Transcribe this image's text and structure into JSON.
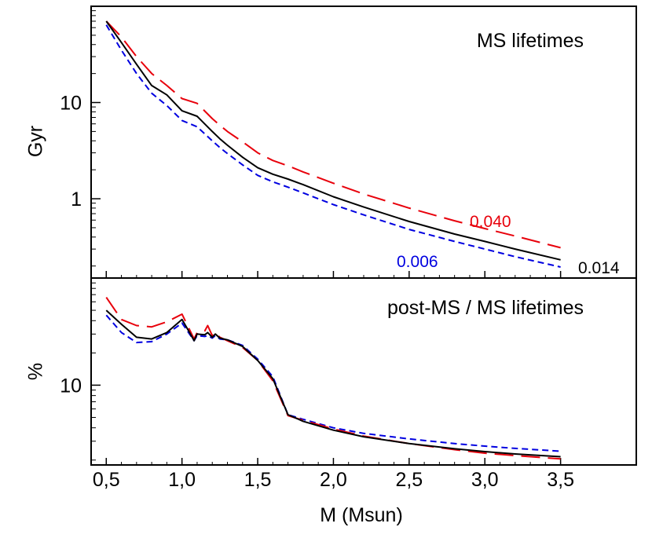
{
  "figure": {
    "xlabel": "M (Msun)"
  },
  "colors": {
    "z014": "#000000",
    "z040": "#e8000b",
    "z006": "#0000e0",
    "axes": "#000000"
  },
  "chart_data": [
    {
      "type": "line",
      "panel": "top",
      "title": "MS lifetimes",
      "ylabel": "Gyr",
      "yscale": "log",
      "xlim": [
        0.4,
        4.0
      ],
      "ylim": [
        0.15,
        100
      ],
      "xticks": [
        {
          "value": 0.5,
          "label": "0,5"
        },
        {
          "value": 1.0,
          "label": "1,0"
        },
        {
          "value": 1.5,
          "label": "1,5"
        },
        {
          "value": 2.0,
          "label": "2,0"
        },
        {
          "value": 2.5,
          "label": "2,5"
        },
        {
          "value": 3.0,
          "label": "3,0"
        },
        {
          "value": 3.5,
          "label": "3,5"
        }
      ],
      "yticks": [
        {
          "value": 1,
          "label": "1"
        },
        {
          "value": 10,
          "label": "10"
        }
      ],
      "series": [
        {
          "name": "0.014",
          "label": "0.014",
          "color_key": "z014",
          "dash": "solid",
          "x": [
            0.5,
            0.6,
            0.7,
            0.8,
            0.9,
            1.0,
            1.1,
            1.2,
            1.25,
            1.3,
            1.4,
            1.5,
            1.6,
            1.7,
            1.8,
            2.0,
            2.2,
            2.5,
            2.8,
            3.0,
            3.2,
            3.5
          ],
          "y": [
            70,
            42,
            25,
            15,
            12,
            8.2,
            7.2,
            5.0,
            4.2,
            3.6,
            2.7,
            2.1,
            1.8,
            1.6,
            1.4,
            1.05,
            0.82,
            0.58,
            0.43,
            0.36,
            0.3,
            0.232
          ]
        },
        {
          "name": "0.040",
          "label": "0.040",
          "color_key": "z040",
          "dash": "long",
          "x": [
            0.5,
            0.6,
            0.7,
            0.8,
            0.9,
            1.0,
            1.1,
            1.2,
            1.25,
            1.3,
            1.4,
            1.5,
            1.6,
            1.7,
            1.8,
            2.0,
            2.2,
            2.5,
            2.8,
            3.0,
            3.2,
            3.5
          ],
          "y": [
            70,
            48,
            30,
            20,
            15,
            11,
            9.8,
            6.8,
            5.8,
            5.0,
            3.9,
            3.0,
            2.5,
            2.2,
            1.9,
            1.45,
            1.12,
            0.8,
            0.59,
            0.49,
            0.41,
            0.31
          ]
        },
        {
          "name": "0.006",
          "label": "0.006",
          "color_key": "z006",
          "dash": "short",
          "x": [
            0.5,
            0.6,
            0.7,
            0.8,
            0.9,
            1.0,
            1.1,
            1.2,
            1.25,
            1.3,
            1.4,
            1.5,
            1.6,
            1.7,
            1.8,
            2.0,
            2.2,
            2.5,
            2.8,
            3.0,
            3.2,
            3.5
          ],
          "y": [
            64,
            35,
            20,
            12.5,
            9.3,
            6.5,
            5.6,
            4.0,
            3.4,
            2.95,
            2.25,
            1.75,
            1.5,
            1.32,
            1.15,
            0.87,
            0.68,
            0.48,
            0.36,
            0.3,
            0.25,
            0.195
          ]
        }
      ]
    },
    {
      "type": "line",
      "panel": "bottom",
      "title": "post-MS / MS lifetimes",
      "ylabel": "%",
      "yscale": "log",
      "xlim": [
        0.4,
        4.0
      ],
      "ylim": [
        1.8,
        100
      ],
      "xticks": [
        {
          "value": 0.5,
          "label": "0,5"
        },
        {
          "value": 1.0,
          "label": "1,0"
        },
        {
          "value": 1.5,
          "label": "1,5"
        },
        {
          "value": 2.0,
          "label": "2,0"
        },
        {
          "value": 2.5,
          "label": "2,5"
        },
        {
          "value": 3.0,
          "label": "3,0"
        },
        {
          "value": 3.5,
          "label": "3,5"
        }
      ],
      "yticks": [
        {
          "value": 10,
          "label": "10"
        }
      ],
      "series": [
        {
          "name": "0.014",
          "color_key": "z014",
          "dash": "solid",
          "x": [
            0.5,
            0.6,
            0.7,
            0.8,
            0.9,
            1.0,
            1.05,
            1.08,
            1.1,
            1.15,
            1.17,
            1.2,
            1.22,
            1.25,
            1.3,
            1.4,
            1.5,
            1.6,
            1.7,
            1.8,
            2.0,
            2.2,
            2.5,
            2.8,
            3.0,
            3.2,
            3.5
          ],
          "y": [
            50,
            37,
            28,
            27,
            31,
            41,
            31,
            26,
            30,
            29.5,
            31,
            28,
            30,
            27.5,
            26.5,
            23,
            17,
            11.5,
            5.3,
            4.6,
            3.8,
            3.3,
            2.85,
            2.55,
            2.4,
            2.28,
            2.15
          ]
        },
        {
          "name": "0.040",
          "color_key": "z040",
          "dash": "long",
          "x": [
            0.5,
            0.6,
            0.7,
            0.8,
            0.9,
            1.0,
            1.05,
            1.08,
            1.1,
            1.15,
            1.17,
            1.2,
            1.22,
            1.25,
            1.3,
            1.4,
            1.5,
            1.6,
            1.7,
            1.8,
            2.0,
            2.2,
            2.5,
            2.8,
            3.0,
            3.2,
            3.5
          ],
          "y": [
            66,
            41,
            36,
            35,
            39,
            46,
            33,
            27,
            31,
            32,
            36,
            29,
            31,
            28,
            26,
            22.5,
            17,
            11,
            5.2,
            4.7,
            3.9,
            3.35,
            2.85,
            2.5,
            2.32,
            2.2,
            2.05
          ]
        },
        {
          "name": "0.006",
          "color_key": "z006",
          "dash": "short",
          "x": [
            0.5,
            0.6,
            0.7,
            0.8,
            0.9,
            1.0,
            1.05,
            1.08,
            1.1,
            1.15,
            1.17,
            1.2,
            1.22,
            1.25,
            1.3,
            1.4,
            1.5,
            1.6,
            1.7,
            1.8,
            2.0,
            2.2,
            2.5,
            2.8,
            3.0,
            3.2,
            3.5
          ],
          "y": [
            45,
            31,
            25,
            25.5,
            30,
            38,
            30,
            26,
            29,
            28.5,
            29,
            27.5,
            29,
            27,
            26.5,
            23.5,
            17.5,
            12,
            5.3,
            4.8,
            4.0,
            3.55,
            3.15,
            2.85,
            2.7,
            2.57,
            2.42
          ]
        }
      ]
    }
  ]
}
